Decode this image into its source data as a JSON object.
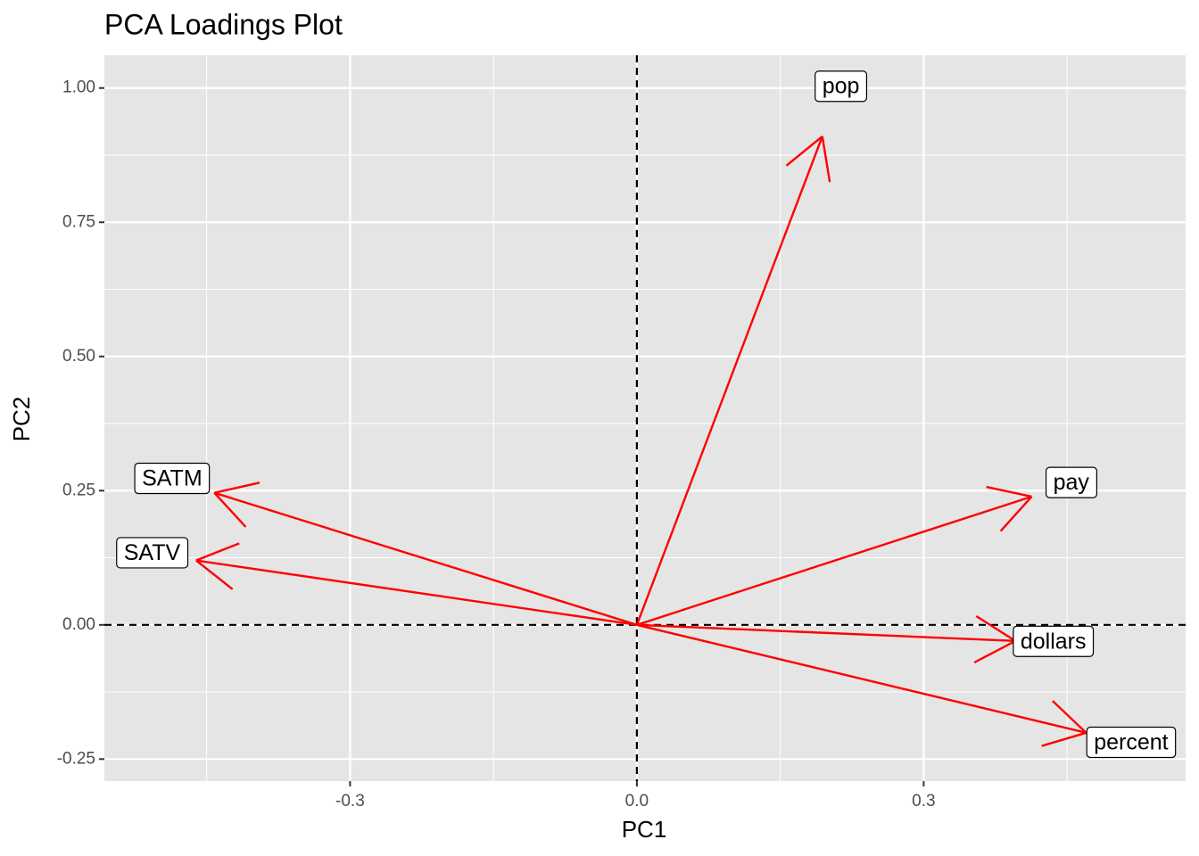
{
  "chart_data": {
    "type": "loadings",
    "title": "PCA Loadings Plot",
    "x_label": "PC1",
    "y_label": "PC2",
    "categories": [
      "pop",
      "pay",
      "dollars",
      "percent",
      "SATM",
      "SATV"
    ],
    "x": [
      0.194,
      0.413,
      0.396,
      0.47,
      -0.442,
      -0.461
    ],
    "values": [
      0.91,
      0.239,
      -0.03,
      -0.201,
      0.246,
      0.12
    ],
    "color": "red",
    "xlim": [
      -0.557,
      0.574
    ],
    "ylim": [
      -0.291,
      1.061
    ],
    "xticks": [
      -0.3,
      {
        "value": 0,
        "label": "0.0"
      },
      0.3
    ],
    "yticks": [
      {
        "value": -0.25,
        "label": "-0.25"
      },
      {
        "value": 0,
        "label": "0.00"
      },
      {
        "value": 0.25,
        "label": "0.25"
      },
      {
        "value": 0.5,
        "label": "0.50"
      },
      {
        "value": 0.75,
        "label": "0.75"
      },
      {
        "value": 1,
        "label": "1.00"
      }
    ],
    "reference_lines": {
      "x": 0,
      "y": 0
    },
    "grid": true
  }
}
